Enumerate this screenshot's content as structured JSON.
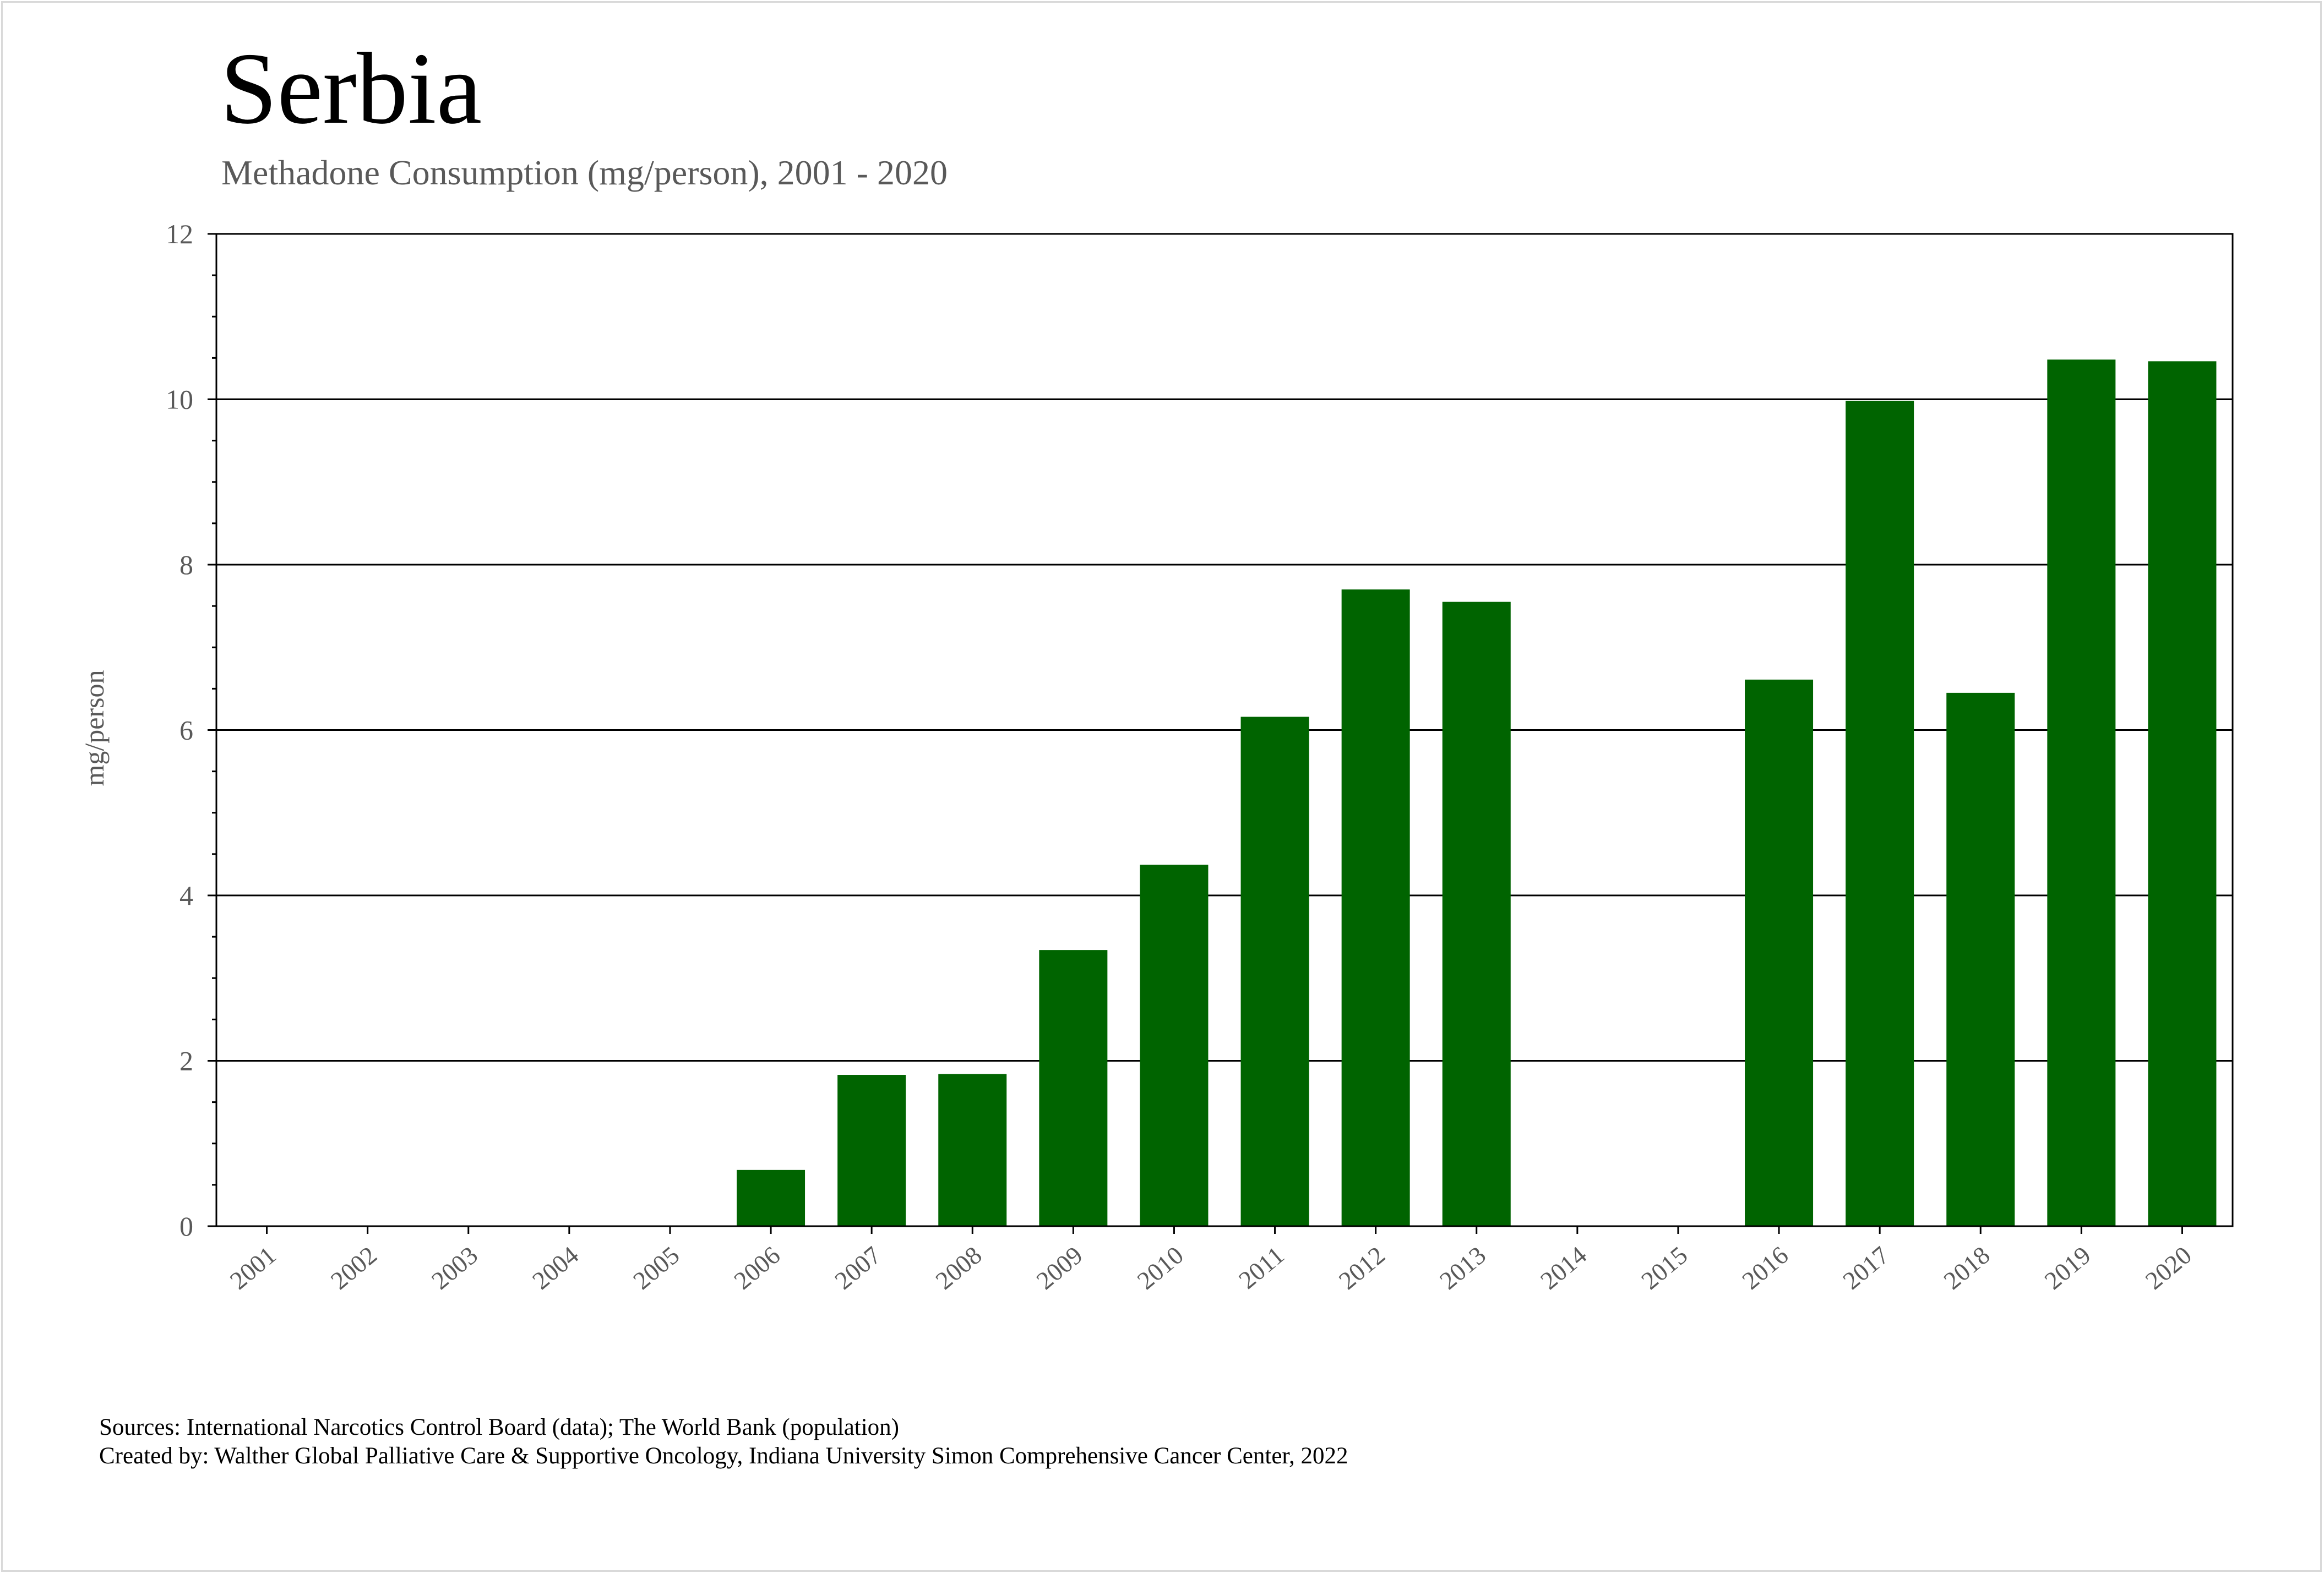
{
  "title": "Serbia",
  "subtitle": "Methadone Consumption (mg/person), 2001 - 2020",
  "sources": "Sources: International Narcotics Control Board (data); The World Bank (population)",
  "created_by": "Created by: Walther Global Palliative Care & Supportive Oncology, Indiana University Simon Comprehensive Cancer Center, 2022",
  "colors": {
    "bar": "#006400",
    "grid": "#000000",
    "text": "#595959"
  },
  "chart_data": {
    "type": "bar",
    "title": "Serbia",
    "subtitle": "Methadone Consumption (mg/person), 2001 - 2020",
    "xlabel": "",
    "ylabel": "mg/person",
    "categories": [
      "2001",
      "2002",
      "2003",
      "2004",
      "2005",
      "2006",
      "2007",
      "2008",
      "2009",
      "2010",
      "2011",
      "2012",
      "2013",
      "2014",
      "2015",
      "2016",
      "2017",
      "2018",
      "2019",
      "2020"
    ],
    "values": [
      0,
      0,
      0,
      0,
      0,
      0.68,
      1.83,
      1.84,
      3.34,
      4.37,
      6.16,
      7.7,
      7.55,
      0,
      0,
      6.61,
      9.98,
      6.45,
      10.48,
      10.46
    ],
    "ylim": [
      0,
      12
    ],
    "yticks": [
      0,
      2,
      4,
      6,
      8,
      10,
      12
    ],
    "grid": true,
    "legend": "none"
  }
}
